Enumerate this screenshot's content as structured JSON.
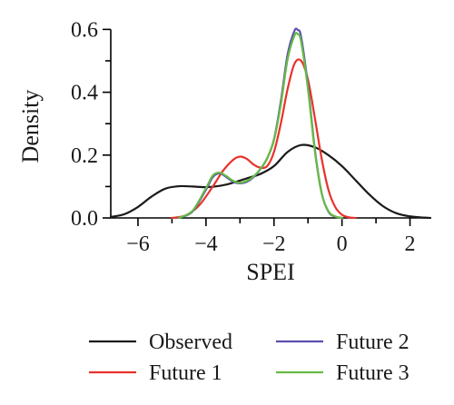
{
  "chart_data": {
    "type": "line",
    "xlabel": "SPEI",
    "ylabel": "Density",
    "xlim": [
      -6.8,
      2.6
    ],
    "ylim": [
      0,
      0.6
    ],
    "xticks": [
      -6,
      -4,
      -2,
      0,
      2
    ],
    "yticks": [
      0.0,
      0.2,
      0.4,
      0.6
    ],
    "xtick_labels": [
      "−6",
      "−4",
      "−2",
      "0",
      "2"
    ],
    "ytick_labels": [
      "0.0",
      "0.2",
      "0.4",
      "0.6"
    ],
    "legend_position": "bottom",
    "series": [
      {
        "name": "Observed",
        "color": "#1a1a1a",
        "x": [
          -6.8,
          -6.4,
          -6.0,
          -5.6,
          -5.2,
          -4.8,
          -4.4,
          -4.0,
          -3.6,
          -3.2,
          -2.8,
          -2.4,
          -2.0,
          -1.6,
          -1.2,
          -0.8,
          -0.4,
          0.0,
          0.4,
          0.8,
          1.2,
          1.6,
          2.0,
          2.4,
          2.6
        ],
        "y": [
          0.003,
          0.012,
          0.035,
          0.068,
          0.093,
          0.101,
          0.1,
          0.098,
          0.102,
          0.112,
          0.126,
          0.14,
          0.165,
          0.21,
          0.232,
          0.225,
          0.2,
          0.165,
          0.12,
          0.075,
          0.038,
          0.015,
          0.005,
          0.001,
          0.0
        ]
      },
      {
        "name": "Future 1",
        "color": "#e8322a",
        "x": [
          -5.0,
          -4.6,
          -4.2,
          -3.8,
          -3.5,
          -3.2,
          -3.0,
          -2.8,
          -2.6,
          -2.4,
          -2.2,
          -2.0,
          -1.8,
          -1.6,
          -1.4,
          -1.2,
          -1.0,
          -0.8,
          -0.6,
          -0.4,
          -0.2,
          0.0,
          0.2,
          0.4
        ],
        "y": [
          0.0,
          0.008,
          0.04,
          0.1,
          0.15,
          0.185,
          0.195,
          0.188,
          0.17,
          0.16,
          0.165,
          0.21,
          0.3,
          0.41,
          0.49,
          0.5,
          0.44,
          0.32,
          0.19,
          0.09,
          0.035,
          0.01,
          0.002,
          0.0
        ]
      },
      {
        "name": "Future 2",
        "color": "#5a4fb0",
        "x": [
          -4.8,
          -4.4,
          -4.0,
          -3.8,
          -3.6,
          -3.4,
          -3.2,
          -3.0,
          -2.8,
          -2.6,
          -2.4,
          -2.2,
          -2.0,
          -1.8,
          -1.6,
          -1.4,
          -1.3,
          -1.2,
          -1.0,
          -0.8,
          -0.6,
          -0.4,
          -0.2,
          0.0
        ],
        "y": [
          0.0,
          0.02,
          0.09,
          0.13,
          0.142,
          0.13,
          0.115,
          0.11,
          0.115,
          0.13,
          0.155,
          0.19,
          0.25,
          0.37,
          0.52,
          0.595,
          0.598,
          0.575,
          0.42,
          0.22,
          0.08,
          0.02,
          0.004,
          0.0
        ]
      },
      {
        "name": "Future 3",
        "color": "#66bb44",
        "x": [
          -4.8,
          -4.4,
          -4.0,
          -3.8,
          -3.6,
          -3.4,
          -3.2,
          -3.0,
          -2.8,
          -2.6,
          -2.4,
          -2.2,
          -2.0,
          -1.8,
          -1.6,
          -1.4,
          -1.3,
          -1.2,
          -1.0,
          -0.8,
          -0.6,
          -0.4,
          -0.2,
          0.0
        ],
        "y": [
          0.0,
          0.022,
          0.095,
          0.135,
          0.144,
          0.133,
          0.118,
          0.112,
          0.118,
          0.132,
          0.156,
          0.19,
          0.248,
          0.36,
          0.505,
          0.58,
          0.585,
          0.56,
          0.41,
          0.215,
          0.08,
          0.022,
          0.005,
          0.0
        ]
      }
    ]
  }
}
